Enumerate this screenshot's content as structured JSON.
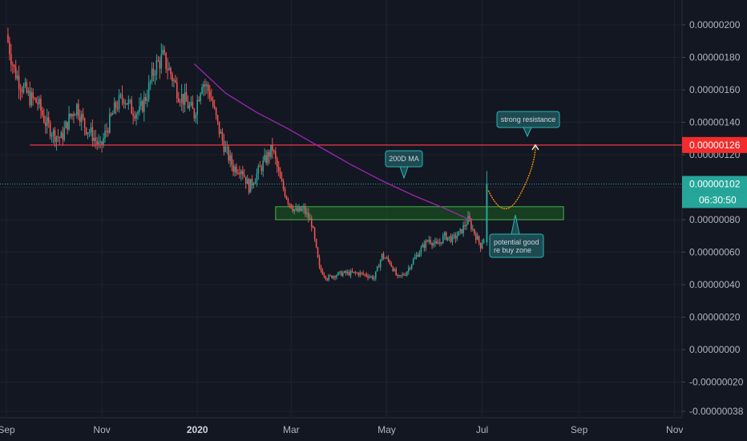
{
  "chart_data": {
    "type": "candlestick",
    "price_axis": {
      "ticks": [
        "0.00000200",
        "0.00000180",
        "0.00000160",
        "0.00000140",
        "0.00000120",
        "0.00000100",
        "0.00000080",
        "0.00000060",
        "0.00000040",
        "0.00000020",
        "0.00000000",
        "-0.00000020",
        "-0.00000038"
      ],
      "tick_values": [
        2.0,
        1.8,
        1.6,
        1.4,
        1.2,
        1.0,
        0.8,
        0.6,
        0.4,
        0.2,
        0.0,
        -0.2,
        -0.38
      ],
      "unit_note": "values in 1e-6"
    },
    "time_axis": {
      "labels": [
        {
          "text": "Sep",
          "bold": false
        },
        {
          "text": "Nov",
          "bold": false
        },
        {
          "text": "2020",
          "bold": true
        },
        {
          "text": "Mar",
          "bold": false
        },
        {
          "text": "May",
          "bold": false
        },
        {
          "text": "Jul",
          "bold": false
        },
        {
          "text": "Sep",
          "bold": false
        },
        {
          "text": "Nov",
          "bold": false
        }
      ],
      "label_day_index": [
        0,
        61,
        122,
        182,
        243,
        304,
        366,
        427
      ]
    },
    "candle_close_points": [
      [
        0,
        1.94
      ],
      [
        5,
        1.72
      ],
      [
        10,
        1.62
      ],
      [
        15,
        1.55
      ],
      [
        20,
        1.52
      ],
      [
        25,
        1.4
      ],
      [
        30,
        1.33
      ],
      [
        35,
        1.3
      ],
      [
        40,
        1.42
      ],
      [
        45,
        1.5
      ],
      [
        50,
        1.38
      ],
      [
        55,
        1.32
      ],
      [
        60,
        1.24
      ],
      [
        65,
        1.38
      ],
      [
        70,
        1.5
      ],
      [
        75,
        1.56
      ],
      [
        80,
        1.48
      ],
      [
        85,
        1.46
      ],
      [
        90,
        1.58
      ],
      [
        95,
        1.74
      ],
      [
        100,
        1.8
      ],
      [
        105,
        1.7
      ],
      [
        110,
        1.58
      ],
      [
        115,
        1.52
      ],
      [
        120,
        1.45
      ],
      [
        125,
        1.66
      ],
      [
        130,
        1.58
      ],
      [
        135,
        1.38
      ],
      [
        140,
        1.23
      ],
      [
        145,
        1.12
      ],
      [
        150,
        1.12
      ],
      [
        155,
        1.0
      ],
      [
        160,
        1.08
      ],
      [
        165,
        1.16
      ],
      [
        170,
        1.24
      ],
      [
        175,
        1.04
      ],
      [
        180,
        0.92
      ],
      [
        185,
        0.85
      ],
      [
        190,
        0.86
      ],
      [
        195,
        0.78
      ],
      [
        200,
        0.5
      ],
      [
        205,
        0.44
      ],
      [
        210,
        0.46
      ],
      [
        215,
        0.47
      ],
      [
        220,
        0.47
      ],
      [
        225,
        0.47
      ],
      [
        230,
        0.46
      ],
      [
        235,
        0.44
      ],
      [
        240,
        0.58
      ],
      [
        245,
        0.54
      ],
      [
        250,
        0.44
      ],
      [
        255,
        0.47
      ],
      [
        260,
        0.55
      ],
      [
        265,
        0.62
      ],
      [
        270,
        0.68
      ],
      [
        275,
        0.64
      ],
      [
        280,
        0.7
      ],
      [
        285,
        0.68
      ],
      [
        290,
        0.72
      ],
      [
        295,
        0.8
      ],
      [
        300,
        0.7
      ],
      [
        303,
        0.64
      ],
      [
        305,
        0.69
      ]
    ],
    "last_candle": {
      "day": 307,
      "open": 0.66,
      "high": 1.1,
      "low": 0.64,
      "close": 1.02
    },
    "ma200": {
      "name": "200D MA",
      "points": [
        [
          120,
          1.76
        ],
        [
          140,
          1.58
        ],
        [
          160,
          1.46
        ],
        [
          180,
          1.36
        ],
        [
          200,
          1.25
        ],
        [
          220,
          1.14
        ],
        [
          240,
          1.04
        ],
        [
          260,
          0.95
        ],
        [
          280,
          0.87
        ],
        [
          296,
          0.8
        ]
      ]
    },
    "resistance_line": {
      "value": 1.26,
      "from_day": 15
    },
    "buy_zone": {
      "low": 0.8,
      "high": 0.88,
      "from_day": 172,
      "to_day": 356
    },
    "projection": [
      [
        308,
        0.98
      ],
      [
        318,
        0.88
      ],
      [
        328,
        0.95
      ],
      [
        338,
        1.26
      ]
    ],
    "current_price_line": {
      "value": 1.02
    },
    "annotations": [
      {
        "text": "strong resistance",
        "lines": [
          "strong resistance"
        ]
      },
      {
        "text": "200D MA",
        "lines": [
          "200D MA"
        ]
      },
      {
        "text": "potential good re buy zone",
        "lines": [
          "potential good",
          "re buy zone"
        ]
      }
    ],
    "price_labels": {
      "resistance": {
        "text": "0.00000126",
        "color": "#f22c2c"
      },
      "current": {
        "text": "0.00000102",
        "color": "#26a69a"
      },
      "countdown": {
        "text": "06:30:50",
        "color": "#26a69a"
      }
    },
    "colors": {
      "up": "#26a69a",
      "down": "#ef5350",
      "ma": "#9c27b0",
      "resistance": "#f23645",
      "zone_fill": "#1b5e20",
      "zone_border": "#4caf50",
      "projection": "#ff9800",
      "callout_bg": "#1d4b52",
      "callout_border": "#2ab5b5"
    }
  }
}
